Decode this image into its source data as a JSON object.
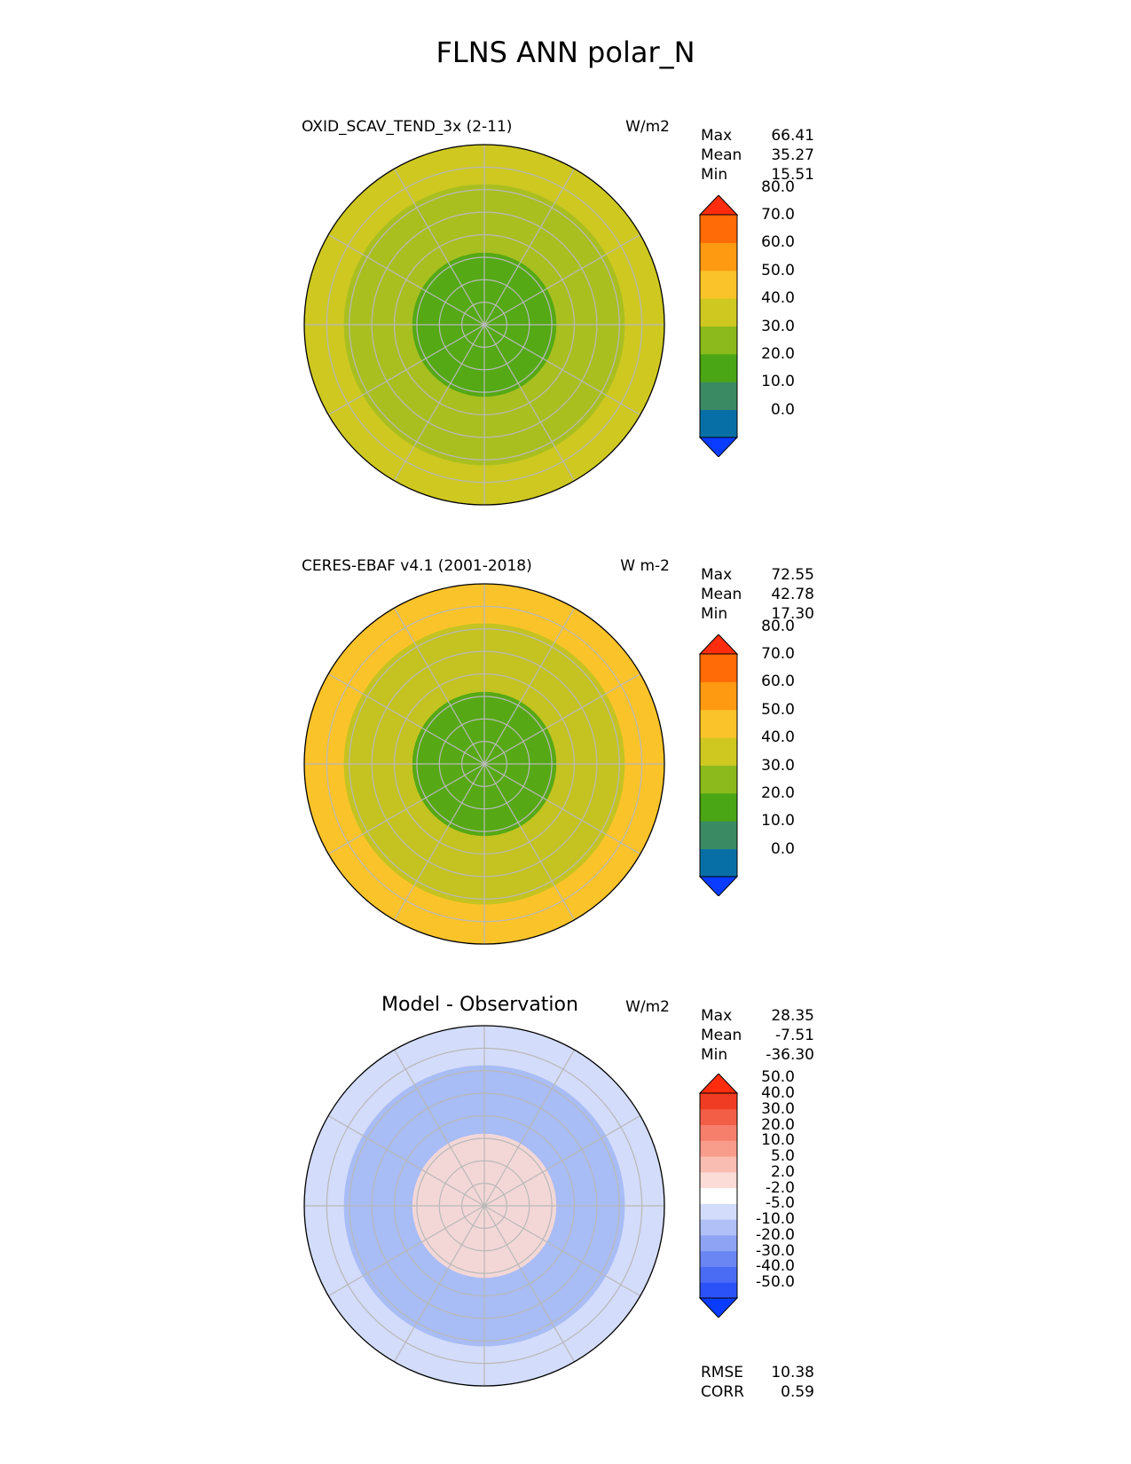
{
  "title": "FLNS ANN polar_N",
  "panels": [
    {
      "title": "OXID_SCAV_TEND_3x (2-11)",
      "units": "W/m2",
      "stats": [
        {
          "label": "Max",
          "value": "66.41"
        },
        {
          "label": "Mean",
          "value": "35.27"
        },
        {
          "label": "Min",
          "value": "15.51"
        }
      ],
      "colorbar": {
        "ticks": [
          "0.0",
          "10.0",
          "20.0",
          "30.0",
          "40.0",
          "50.0",
          "60.0",
          "70.0",
          "80.0"
        ],
        "colors": [
          "#0a3cff",
          "#086fa6",
          "#3a8a64",
          "#4aa614",
          "#8cb91c",
          "#cec821",
          "#fbc32a",
          "#fd9a12",
          "#ff6b06",
          "#ff2d0e"
        ]
      },
      "map": {
        "base_color": "#a9bf20",
        "inner_color": "#4aa614",
        "outer_color": "#cec821"
      }
    },
    {
      "title": "CERES-EBAF v4.1 (2001-2018)",
      "units": "W m-2",
      "stats": [
        {
          "label": "Max",
          "value": "72.55"
        },
        {
          "label": "Mean",
          "value": "42.78"
        },
        {
          "label": "Min",
          "value": "17.30"
        }
      ],
      "colorbar": {
        "ticks": [
          "0.0",
          "10.0",
          "20.0",
          "30.0",
          "40.0",
          "50.0",
          "60.0",
          "70.0",
          "80.0"
        ],
        "colors": [
          "#0a3cff",
          "#086fa6",
          "#3a8a64",
          "#4aa614",
          "#8cb91c",
          "#cec821",
          "#fbc32a",
          "#fd9a12",
          "#ff6b06",
          "#ff2d0e"
        ]
      },
      "map": {
        "base_color": "#c4c321",
        "inner_color": "#4aa614",
        "outer_color": "#fbc32a"
      }
    },
    {
      "title": "Model - Observation",
      "units": "W/m2",
      "stats": [
        {
          "label": "Max",
          "value": "28.35"
        },
        {
          "label": "Mean",
          "value": "-7.51"
        },
        {
          "label": "Min",
          "value": "-36.30"
        }
      ],
      "colorbar": {
        "ticks": [
          "-50.0",
          "-40.0",
          "-30.0",
          "-20.0",
          "-10.0",
          "-5.0",
          "-2.0",
          "2.0",
          "5.0",
          "10.0",
          "20.0",
          "30.0",
          "40.0",
          "50.0"
        ],
        "colors": [
          "#0a3cff",
          "#2b52f8",
          "#4a6cf5",
          "#6a86f3",
          "#8ea3f3",
          "#b1c0f6",
          "#d3dcfa",
          "#ffffff",
          "#fbdcd6",
          "#f9bdb2",
          "#f89c8c",
          "#f57f6a",
          "#f25e46",
          "#f03c22",
          "#ff2d0e"
        ]
      },
      "map": {
        "base_color": "#a8bcf5",
        "inner_color": "#fbd9d3",
        "outer_color": "#d3dcfa"
      },
      "extra_stats": [
        {
          "label": "RMSE",
          "value": "10.38"
        },
        {
          "label": "CORR",
          "value": "0.59"
        }
      ]
    }
  ]
}
